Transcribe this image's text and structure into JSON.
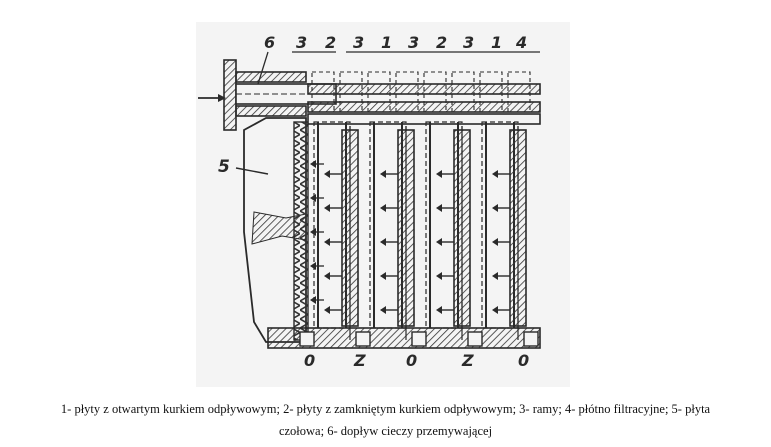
{
  "diagram": {
    "top_labels": [
      "6",
      "3",
      "2",
      "3",
      "1",
      "3",
      "2",
      "3",
      "1",
      "4"
    ],
    "side_label": "5",
    "bottom_labels": [
      "0",
      "Z",
      "0",
      "Z",
      "0"
    ]
  },
  "caption": {
    "line1": "1-  płyty z otwartym kurkiem odpływowym; 2- płyty z zamkniętym kurkiem odpływowym; 3- ramy; 4- płótno filtracyjne; 5- płyta",
    "line2": "czołowa; 6- dopływ cieczy przemywającej"
  },
  "colors": {
    "ink": "#2a2a2a",
    "paper": "#f4f4f4",
    "hatch": "#555555"
  }
}
